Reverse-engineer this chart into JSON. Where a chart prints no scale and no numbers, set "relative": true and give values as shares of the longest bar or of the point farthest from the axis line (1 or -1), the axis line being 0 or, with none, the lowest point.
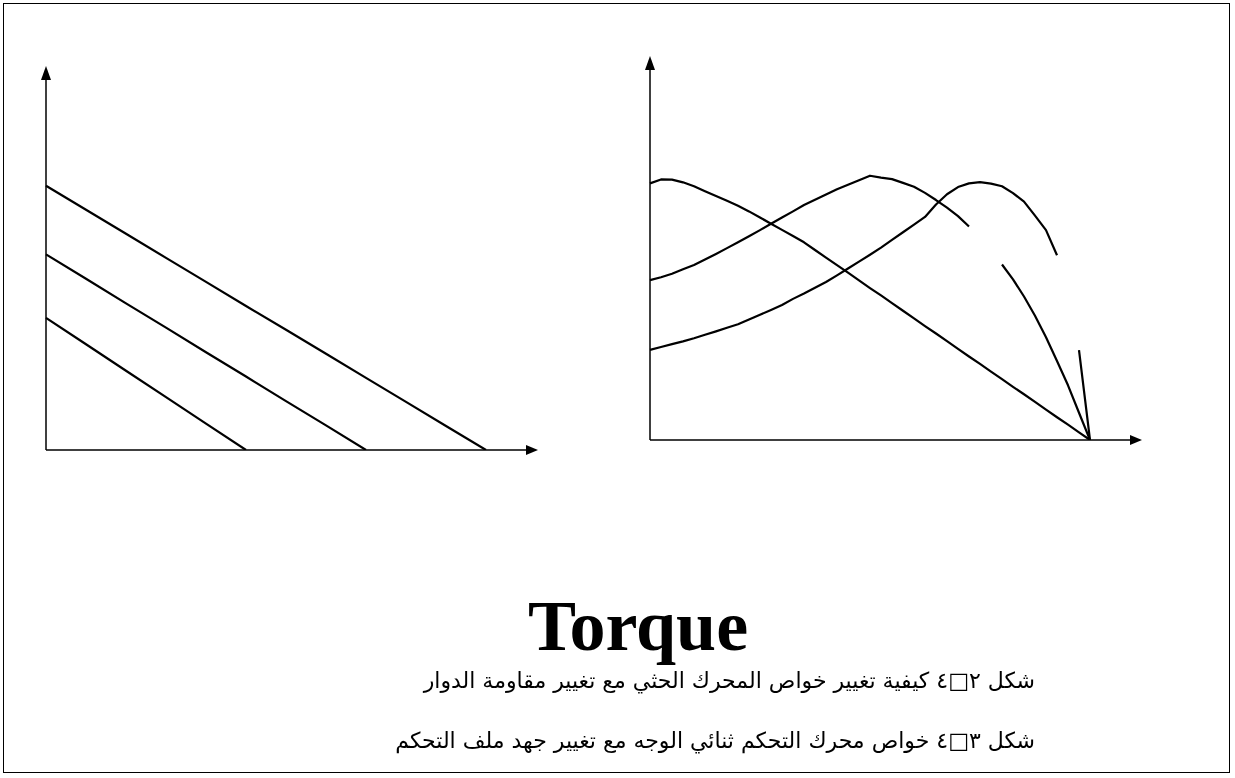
{
  "chart_data": [
    {
      "type": "line",
      "relative": true,
      "legend": false,
      "grid": false,
      "marker": "none",
      "line_style": "solid",
      "tick_labels": false,
      "annotations": [
        "شكل ٢□٤ كيفية تغيير خواص المحرك الحثي مع تغيير مقاومة الدوار",
        "Torque"
      ],
      "categories": [
        null,
        null,
        null,
        null,
        null,
        null,
        null,
        null,
        null,
        null,
        null,
        null
      ],
      "series": [
        {
          "color": "#000000",
          "values": [
            1,
            0.909,
            0.818,
            0.727,
            0.636,
            0.545,
            0.455,
            0.364,
            0.273,
            0.182,
            0.091,
            0
          ]
        },
        {
          "color": "#000000",
          "values": [
            0.74,
            0.648,
            0.555,
            0.463,
            0.37,
            0.278,
            0.185,
            0.093,
            0,
            null,
            null,
            null
          ]
        },
        {
          "color": "#000000",
          "values": [
            0.5,
            0.4,
            0.3,
            0.2,
            0.1,
            0,
            null,
            null,
            null,
            null,
            null,
            null
          ]
        }
      ]
    },
    {
      "type": "line",
      "relative": true,
      "legend": false,
      "grid": false,
      "marker": "none",
      "line_style": "solid",
      "tick_labels": false,
      "annotations": [
        "شكل ٣□٤ خواص محرك التحكم ثنائي الوجه مع تغيير جهد ملف التحكم"
      ],
      "categories": [
        null,
        null,
        null,
        null,
        null,
        null,
        null,
        null,
        null,
        null,
        null,
        null,
        null,
        null,
        null,
        null,
        null,
        null,
        null,
        null,
        null,
        null,
        null,
        null,
        null,
        null,
        null,
        null,
        null,
        null,
        null,
        null,
        null,
        null,
        null,
        null,
        null,
        null,
        null,
        null,
        null
      ],
      "series": [
        {
          "color": "#000000",
          "values": [
            0.971,
            0.986,
            0.985,
            0.975,
            0.96,
            0.941,
            0.923,
            0.905,
            0.886,
            0.865,
            0.842,
            0.818,
            0.795,
            0.772,
            0.748,
            0.719,
            0.69,
            0.662,
            0.633,
            0.604,
            0.575,
            0.547,
            0.518,
            0.489,
            0.46,
            0.431,
            0.403,
            0.374,
            0.345,
            0.316,
            0.288,
            0.259,
            0.23,
            0.201,
            0.173,
            0.144,
            0.115,
            0.086,
            0.058,
            0.029,
            0
          ]
        },
        {
          "color": "#000000",
          "values": [
            0.605,
            0.616,
            0.629,
            0.646,
            0.662,
            0.683,
            0.704,
            0.726,
            0.748,
            0.771,
            0.794,
            0.818,
            0.842,
            0.865,
            0.889,
            0.909,
            0.929,
            0.949,
            0.966,
            0.983,
            1,
            0.993,
            0.987,
            0.973,
            0.958,
            0.935,
            0.908,
            0.879,
            0.847,
            0.808,
            null,
            null,
            0.664,
            0.608,
            0.543,
            0.47,
            0.389,
            0.299,
            0.207,
            0.103,
            0
          ]
        },
        {
          "color": "#000000",
          "values": [
            0.341,
            0.352,
            0.363,
            0.373,
            0.385,
            0.398,
            0.411,
            0.425,
            0.438,
            0.456,
            0.474,
            0.492,
            0.511,
            0.534,
            0.554,
            0.576,
            0.598,
            0.623,
            0.649,
            0.675,
            0.701,
            0.728,
            0.757,
            0.786,
            0.815,
            0.844,
            0.891,
            0.93,
            0.957,
            0.971,
            0.976,
            0.97,
            0.96,
            0.934,
            0.902,
            0.849,
            0.794,
            0.699,
            null,
            0.34,
            0
          ]
        }
      ]
    }
  ]
}
